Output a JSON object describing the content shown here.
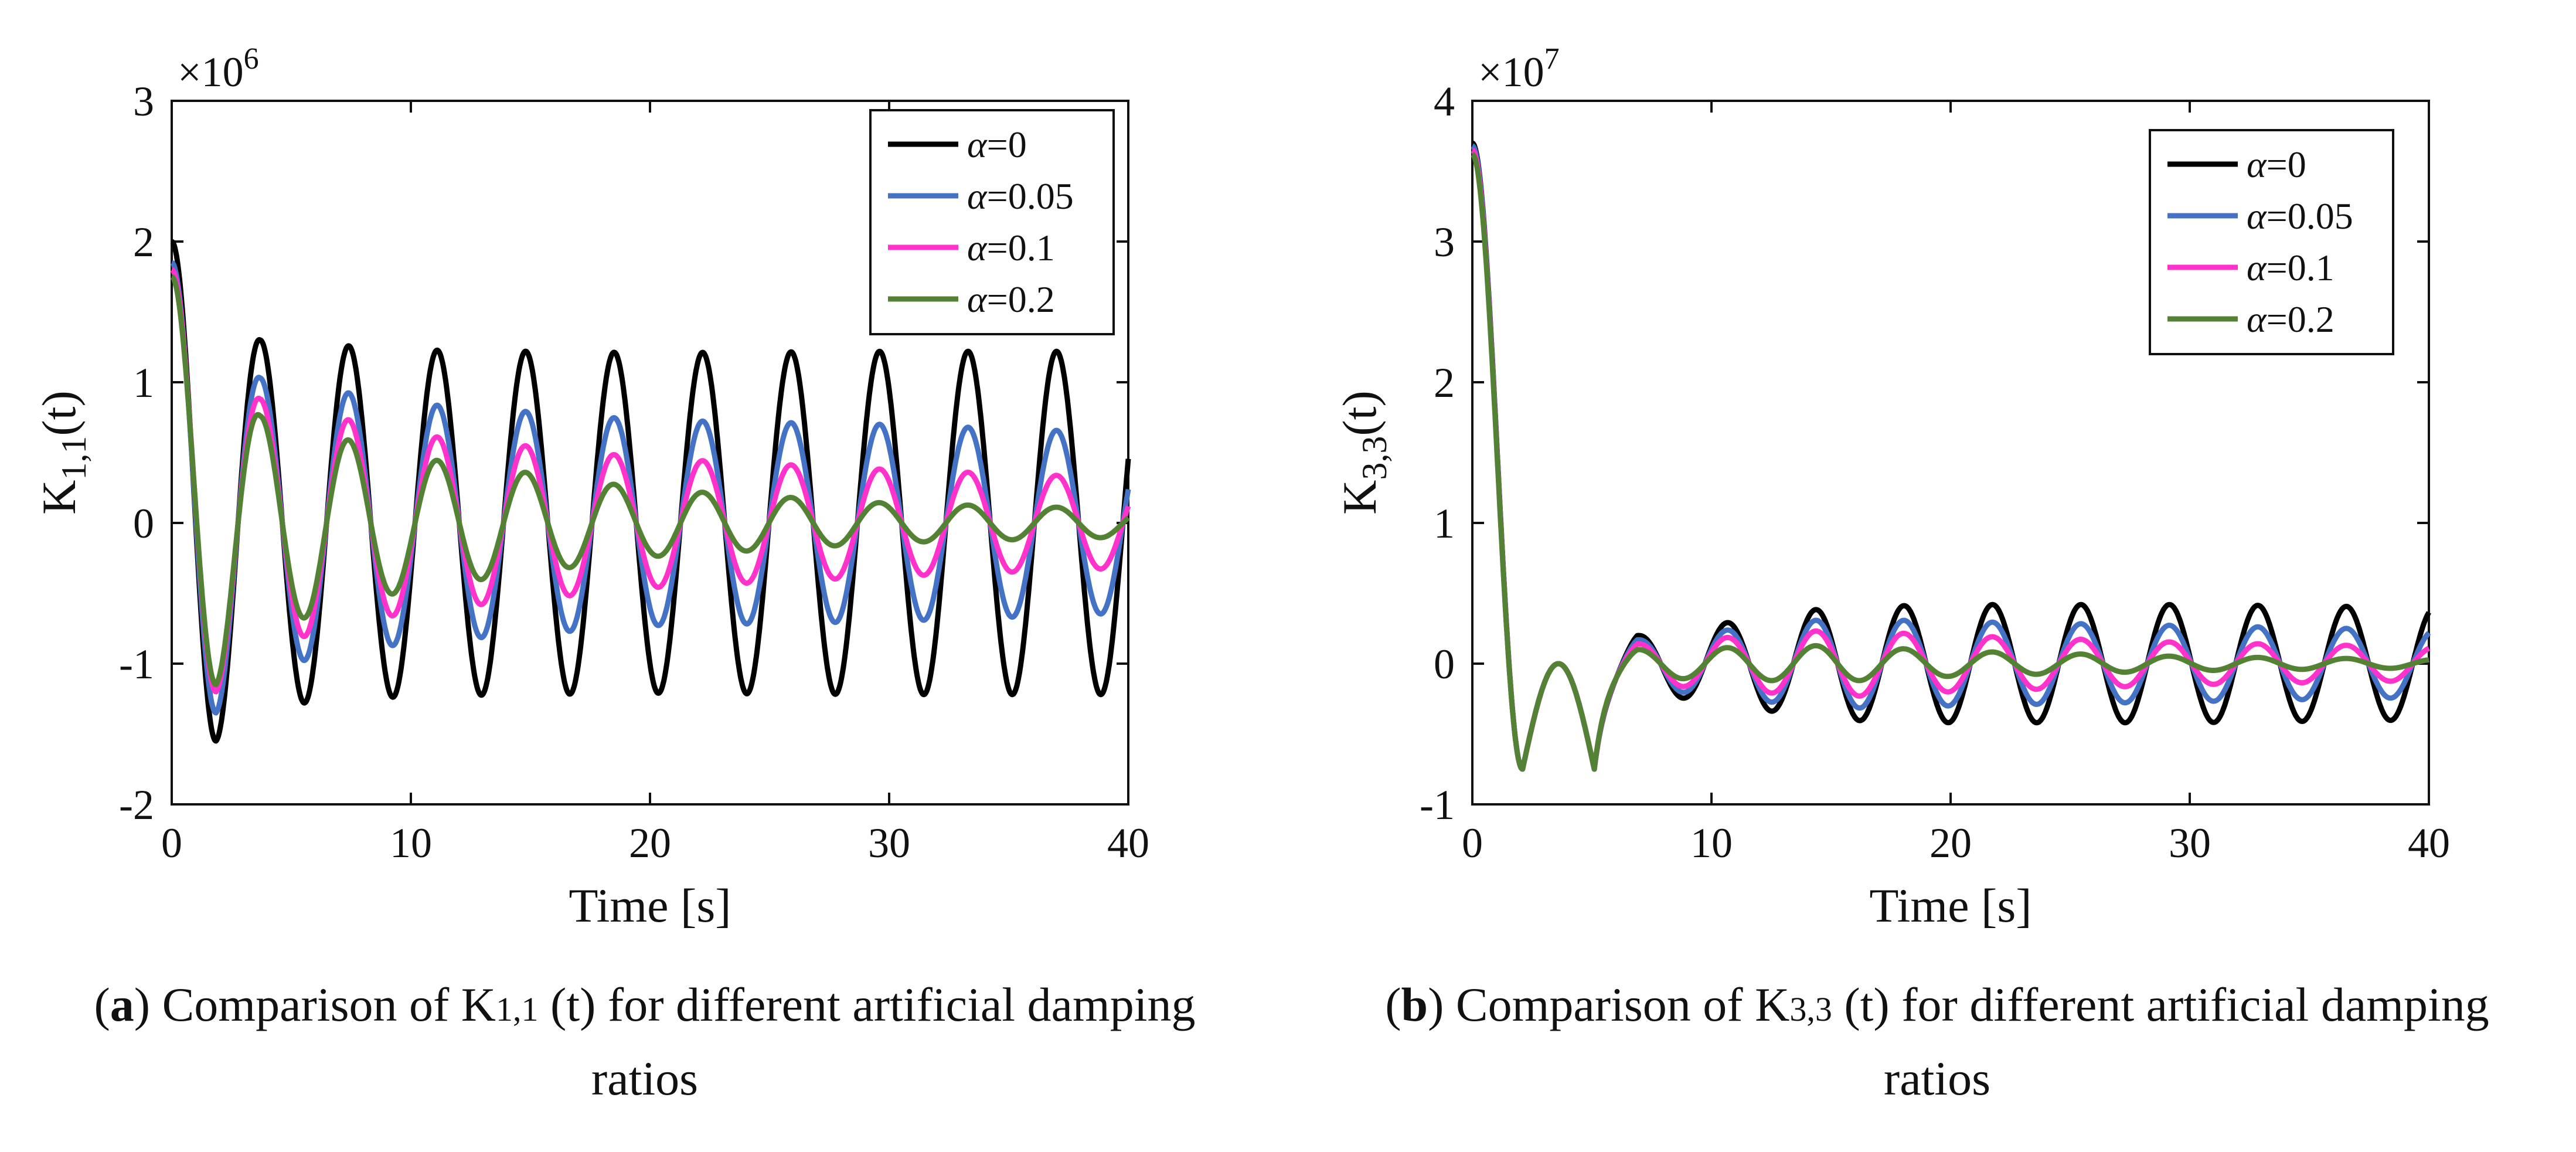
{
  "colors": {
    "alpha_0": "#000000",
    "alpha_005": "#4472c4",
    "alpha_01": "#ff33cc",
    "alpha_02": "#548235"
  },
  "chart_data": [
    {
      "id": "a",
      "type": "line",
      "title": "",
      "xlabel": "Time [s]",
      "ylabel_base": "K",
      "ylabel_sub": "1,1",
      "ylabel_tail": "(t)",
      "multiplier": "×10",
      "multiplier_exp": "6",
      "xlim": [
        0,
        40
      ],
      "ylim": [
        -2,
        3
      ],
      "xticks": [
        0,
        10,
        20,
        30,
        40
      ],
      "yticks": [
        -2,
        -1,
        0,
        1,
        2,
        3
      ],
      "xtick_labels": [
        "0",
        "10",
        "20",
        "30",
        "40"
      ],
      "ytick_labels": [
        "-2",
        "-1",
        "0",
        "1",
        "2",
        "3"
      ],
      "legend_position": "top-right",
      "signal_model": {
        "description": "approximate trace digitized from figure: damped oscillation around 0",
        "period_s": 3.7,
        "first_min_time_s": 1.85,
        "series_values": "see series"
      },
      "series": [
        {
          "name": "α=0",
          "symbol": "α",
          "value": "=0",
          "color": "#000000",
          "start": 2.0,
          "first_min": -1.55,
          "amplitude_envelope": [
            [
              3.7,
              1.3
            ],
            [
              10,
              1.23
            ],
            [
              20,
              1.21
            ],
            [
              30,
              1.22
            ],
            [
              40,
              1.22
            ]
          ]
        },
        {
          "name": "α=0.05",
          "symbol": "α",
          "value": "=0.05",
          "color": "#4472c4",
          "start": 1.85,
          "first_min": -1.35,
          "amplitude_envelope": [
            [
              3.7,
              1.03
            ],
            [
              10,
              0.85
            ],
            [
              20,
              0.73
            ],
            [
              30,
              0.7
            ],
            [
              40,
              0.64
            ]
          ]
        },
        {
          "name": "α=0.1",
          "symbol": "α",
          "value": "=0.1",
          "color": "#ff33cc",
          "start": 1.8,
          "first_min": -1.2,
          "amplitude_envelope": [
            [
              3.7,
              0.88
            ],
            [
              10,
              0.63
            ],
            [
              20,
              0.46
            ],
            [
              30,
              0.38
            ],
            [
              40,
              0.32
            ]
          ]
        },
        {
          "name": "α=0.2",
          "symbol": "α",
          "value": "=0.2",
          "color": "#548235",
          "start": 1.75,
          "first_min": -1.15,
          "amplitude_envelope": [
            [
              3.7,
              0.76
            ],
            [
              10,
              0.47
            ],
            [
              20,
              0.24
            ],
            [
              30,
              0.14
            ],
            [
              40,
              0.1
            ]
          ]
        }
      ]
    },
    {
      "id": "b",
      "type": "line",
      "title": "",
      "xlabel": "Time [s]",
      "ylabel_base": "K",
      "ylabel_sub": "3,3",
      "ylabel_tail": "(t)",
      "multiplier": "×10",
      "multiplier_exp": "7",
      "xlim": [
        0,
        40
      ],
      "ylim": [
        -1,
        4
      ],
      "xticks": [
        0,
        10,
        20,
        30,
        40
      ],
      "yticks": [
        -1,
        0,
        1,
        2,
        3,
        4
      ],
      "xtick_labels": [
        "0",
        "10",
        "20",
        "30",
        "40"
      ],
      "ytick_labels": [
        "-1",
        "0",
        "1",
        "2",
        "3",
        "4"
      ],
      "legend_position": "top-right",
      "signal_model": {
        "description": "approximate trace digitized from figure: fast decay from ~3.7 then oscillation around 0",
        "period_s": 3.7
      },
      "series": [
        {
          "name": "α=0",
          "symbol": "α",
          "value": "=0",
          "color": "#000000",
          "start": 3.7,
          "amplitude_envelope": [
            [
              7,
              0.2
            ],
            [
              15,
              0.4
            ],
            [
              20,
              0.42
            ],
            [
              30,
              0.42
            ],
            [
              40,
              0.4
            ]
          ]
        },
        {
          "name": "α=0.05",
          "symbol": "α",
          "value": "=0.05",
          "color": "#4472c4",
          "start": 3.68,
          "amplitude_envelope": [
            [
              7,
              0.17
            ],
            [
              15,
              0.32
            ],
            [
              20,
              0.3
            ],
            [
              30,
              0.27
            ],
            [
              40,
              0.24
            ]
          ]
        },
        {
          "name": "α=0.1",
          "symbol": "α",
          "value": "=0.1",
          "color": "#ff33cc",
          "start": 3.65,
          "amplitude_envelope": [
            [
              7,
              0.14
            ],
            [
              15,
              0.24
            ],
            [
              20,
              0.2
            ],
            [
              30,
              0.15
            ],
            [
              40,
              0.12
            ]
          ]
        },
        {
          "name": "α=0.2",
          "symbol": "α",
          "value": "=0.2",
          "color": "#548235",
          "start": 3.62,
          "amplitude_envelope": [
            [
              7,
              0.1
            ],
            [
              15,
              0.13
            ],
            [
              20,
              0.09
            ],
            [
              30,
              0.05
            ],
            [
              40,
              0.03
            ]
          ]
        }
      ]
    }
  ],
  "captions": {
    "a": {
      "label": "a",
      "pre": "Comparison of K",
      "sub": "1,1",
      "post": " (t) for different artificial damping",
      "line2": "ratios"
    },
    "b": {
      "label": "b",
      "pre": "Comparison of K",
      "sub": "3,3",
      "post": " (t) for different artificial damping",
      "line2": "ratios"
    }
  }
}
